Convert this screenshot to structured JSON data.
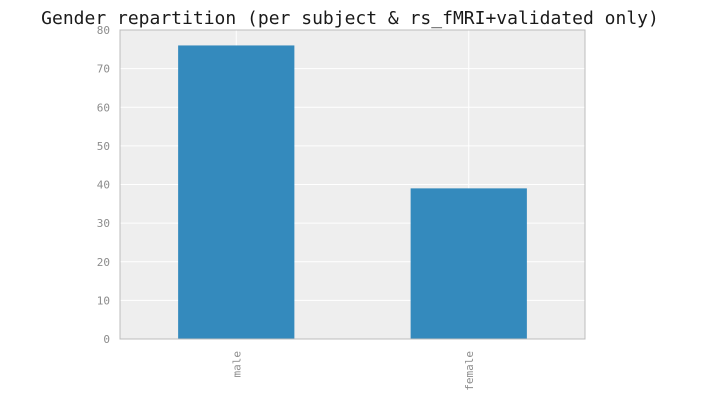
{
  "chart_data": {
    "type": "bar",
    "title": "Gender repartition (per subject & rs_fMRI+validated only)",
    "xlabel": "",
    "ylabel": "",
    "categories": [
      "male",
      "female"
    ],
    "values": [
      76,
      39
    ],
    "ylim": [
      0,
      80
    ],
    "yticks": [
      "0",
      "10",
      "20",
      "30",
      "40",
      "50",
      "60",
      "70",
      "80"
    ],
    "grid": true,
    "legend": "none",
    "colors": {
      "bar": "#348abd",
      "plot_background": "#eeeeee",
      "grid": "#ffffff",
      "axes_edge": "#bcbcbc",
      "tick_text": "#8c8c8c",
      "title_text": "#1a1a1a"
    }
  }
}
